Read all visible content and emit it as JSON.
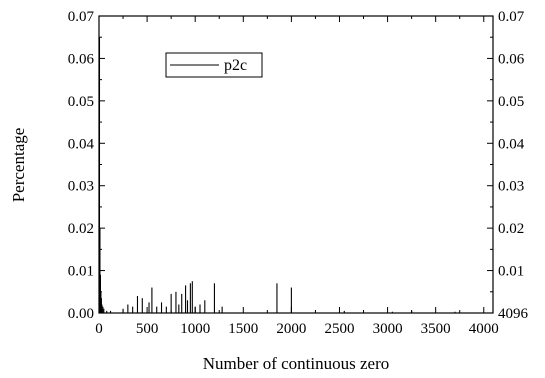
{
  "chart_data": {
    "type": "bar",
    "xlabel": "Number of continuous zero",
    "ylabel": "Percentage",
    "xlim": [
      0,
      4096
    ],
    "ylim": [
      0,
      0.07
    ],
    "x_ticks": [
      "0",
      "500",
      "1000",
      "1500",
      "2000",
      "2500",
      "3000",
      "3500",
      "4000"
    ],
    "x_tick_values": [
      0,
      500,
      1000,
      1500,
      2000,
      2500,
      3000,
      3500,
      4000
    ],
    "y_ticks": [
      "0.00",
      "0.01",
      "0.02",
      "0.03",
      "0.04",
      "0.05",
      "0.06",
      "0.07"
    ],
    "y_tick_values": [
      0,
      0.01,
      0.02,
      0.03,
      0.04,
      0.05,
      0.06,
      0.07
    ],
    "right_ticks": [
      "4096",
      "0.01",
      "0.02",
      "0.03",
      "0.04",
      "0.05",
      "0.06",
      "0.07"
    ],
    "legend": {
      "label": "p2c",
      "position": "top-left"
    },
    "grid": false,
    "series": [
      {
        "name": "p2c",
        "x": [
          5,
          10,
          15,
          20,
          25,
          30,
          40,
          50,
          80,
          120,
          250,
          300,
          350,
          400,
          450,
          520,
          550,
          600,
          650,
          700,
          750,
          800,
          830,
          860,
          900,
          920,
          950,
          970,
          1000,
          1050,
          1100,
          1200,
          1280,
          1850,
          2000,
          2550,
          3050,
          3250,
          3700
        ],
        "values": [
          0.065,
          0.02,
          0.009,
          0.005,
          0.0035,
          0.002,
          0.0015,
          0.001,
          0.0005,
          0.0005,
          0.001,
          0.002,
          0.0015,
          0.004,
          0.0035,
          0.0025,
          0.006,
          0.0015,
          0.0025,
          0.0015,
          0.0045,
          0.005,
          0.002,
          0.0045,
          0.0065,
          0.003,
          0.007,
          0.0075,
          0.0015,
          0.002,
          0.003,
          0.007,
          0.0015,
          0.007,
          0.006,
          0.0005,
          0.0003,
          0.0005,
          0.0003
        ]
      }
    ]
  }
}
